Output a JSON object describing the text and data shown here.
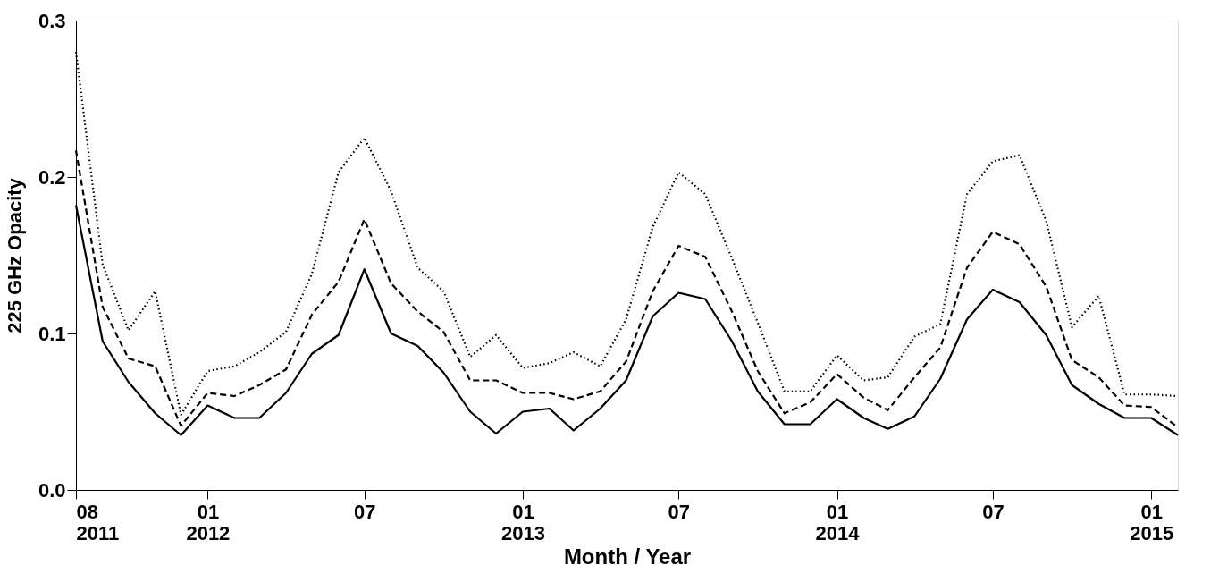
{
  "chart_data": {
    "type": "line",
    "xlabel": "Month / Year",
    "ylabel": "225 GHz Opacity",
    "x": [
      "2011-08",
      "2011-09",
      "2011-10",
      "2011-11",
      "2011-12",
      "2012-01",
      "2012-02",
      "2012-03",
      "2012-04",
      "2012-05",
      "2012-06",
      "2012-07",
      "2012-08",
      "2012-09",
      "2012-10",
      "2012-11",
      "2012-12",
      "2013-01",
      "2013-02",
      "2013-03",
      "2013-04",
      "2013-05",
      "2013-06",
      "2013-07",
      "2013-08",
      "2013-09",
      "2013-10",
      "2013-11",
      "2013-12",
      "2014-01",
      "2014-02",
      "2014-03",
      "2014-04",
      "2014-05",
      "2014-06",
      "2014-07",
      "2014-08",
      "2014-09",
      "2014-10",
      "2014-11",
      "2014-12",
      "2015-01",
      "2015-02"
    ],
    "series": [
      {
        "color": "#000000",
        "line_style": "solid",
        "values": [
          0.182,
          0.095,
          0.069,
          0.049,
          0.035,
          0.054,
          0.046,
          0.046,
          0.062,
          0.087,
          0.099,
          0.141,
          0.1,
          0.092,
          0.075,
          0.05,
          0.036,
          0.05,
          0.052,
          0.038,
          0.052,
          0.07,
          0.111,
          0.126,
          0.122,
          0.095,
          0.063,
          0.042,
          0.042,
          0.058,
          0.046,
          0.039,
          0.047,
          0.071,
          0.109,
          0.128,
          0.12,
          0.099,
          0.067,
          0.055,
          0.046,
          0.046,
          0.035
        ]
      },
      {
        "color": "#000000",
        "line_style": "dashed",
        "values": [
          0.217,
          0.117,
          0.084,
          0.079,
          0.041,
          0.062,
          0.06,
          0.067,
          0.077,
          0.112,
          0.133,
          0.173,
          0.132,
          0.114,
          0.101,
          0.07,
          0.07,
          0.062,
          0.062,
          0.058,
          0.063,
          0.082,
          0.127,
          0.156,
          0.149,
          0.114,
          0.076,
          0.049,
          0.056,
          0.074,
          0.059,
          0.051,
          0.072,
          0.091,
          0.142,
          0.165,
          0.157,
          0.13,
          0.083,
          0.072,
          0.054,
          0.053,
          0.04
        ]
      },
      {
        "color": "#000000",
        "line_style": "dotted",
        "values": [
          0.28,
          0.144,
          0.102,
          0.127,
          0.048,
          0.076,
          0.079,
          0.088,
          0.101,
          0.138,
          0.203,
          0.225,
          0.191,
          0.142,
          0.127,
          0.085,
          0.099,
          0.078,
          0.081,
          0.088,
          0.079,
          0.109,
          0.168,
          0.203,
          0.189,
          0.148,
          0.107,
          0.063,
          0.063,
          0.086,
          0.07,
          0.072,
          0.098,
          0.106,
          0.189,
          0.21,
          0.214,
          0.172,
          0.104,
          0.124,
          0.061,
          0.061,
          0.06
        ]
      }
    ],
    "xlim": [
      "2011-08",
      "2015-02"
    ],
    "xticks": [
      {
        "value": "2011-08",
        "label": "08\n2011"
      },
      {
        "value": "2012-01",
        "label": "01\n2012"
      },
      {
        "value": "2012-07",
        "label": "07"
      },
      {
        "value": "2013-01",
        "label": "01\n2013"
      },
      {
        "value": "2013-07",
        "label": "07"
      },
      {
        "value": "2014-01",
        "label": "01\n2014"
      },
      {
        "value": "2014-07",
        "label": "07"
      },
      {
        "value": "2015-01",
        "label": "01\n2015"
      }
    ],
    "ylim": [
      0,
      0.3
    ],
    "yticks": [
      {
        "value": 0,
        "label": "0.0"
      },
      {
        "value": 0.1,
        "label": "0.1"
      },
      {
        "value": 0.2,
        "label": "0.2"
      },
      {
        "value": 0.3,
        "label": "0.3"
      }
    ],
    "grid": false,
    "marker": "none"
  }
}
